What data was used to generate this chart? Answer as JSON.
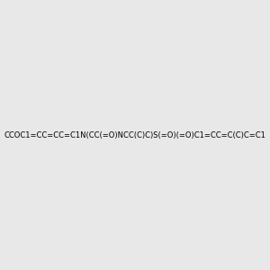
{
  "smiles": "CCOC1=CC=CC=C1N(CC(=O)NCC(C)C)S(=O)(=O)C1=CC=C(C)C=C1",
  "image_size": 300,
  "background_color": "#e8e8e8",
  "title": ""
}
